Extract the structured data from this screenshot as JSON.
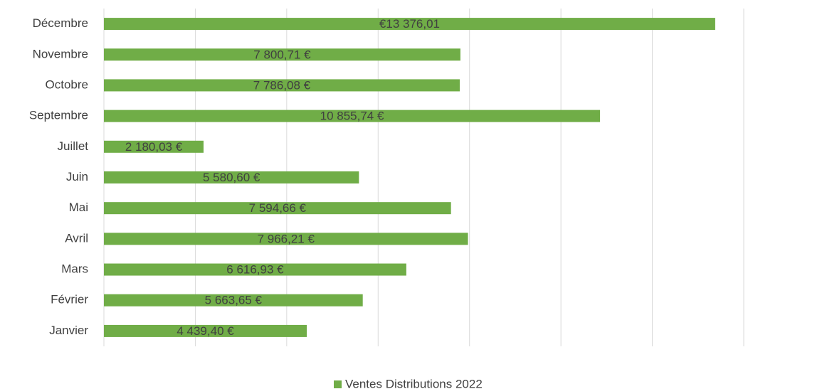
{
  "chart_data": {
    "type": "barh",
    "categories": [
      "Janvier",
      "Février",
      "Mars",
      "Avril",
      "Mai",
      "Juin",
      "Juillet",
      "Septembre",
      "Octobre",
      "Novembre",
      "Décembre"
    ],
    "series": [
      {
        "name": "Ventes Distributions 2022",
        "color": "#70ad47",
        "values": [
          4439.4,
          5663.65,
          6616.93,
          7966.21,
          7594.66,
          5580.6,
          2180.03,
          10855.74,
          7786.08,
          7800.71,
          13376.01
        ],
        "value_labels": [
          "4 439,40 €",
          "5 663,65 €",
          "6 616,93 €",
          "7 966,21 €",
          "7 594,66 €",
          "5 580,60 €",
          "2 180,03 €",
          "10 855,74 €",
          "7 786,08 €",
          "7 800,71 €",
          "€13 376,01"
        ]
      }
    ],
    "xlim": [
      0,
      14000
    ],
    "xticks": [
      0,
      2000,
      4000,
      6000,
      8000,
      10000,
      12000,
      14000
    ],
    "grid": true,
    "legend": "bottom"
  }
}
